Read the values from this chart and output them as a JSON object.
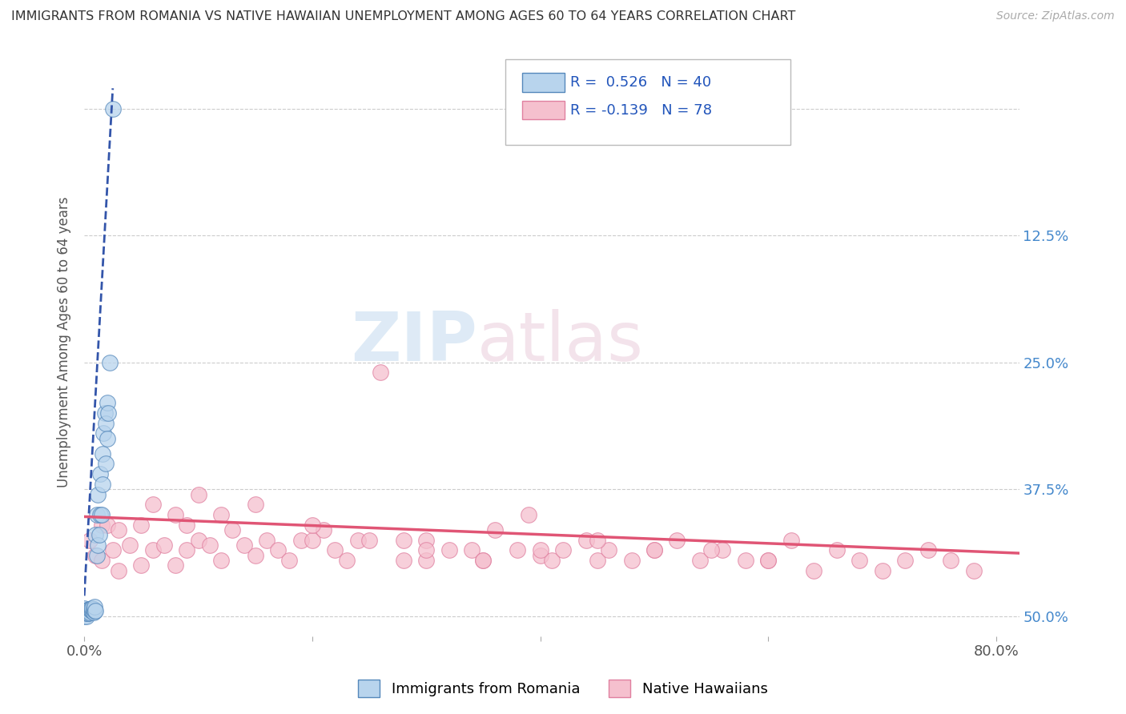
{
  "title": "IMMIGRANTS FROM ROMANIA VS NATIVE HAWAIIAN UNEMPLOYMENT AMONG AGES 60 TO 64 YEARS CORRELATION CHART",
  "source": "Source: ZipAtlas.com",
  "ylabel": "Unemployment Among Ages 60 to 64 years",
  "xlim": [
    0.0,
    0.82
  ],
  "ylim": [
    -0.02,
    0.56
  ],
  "yticks": [
    0.0,
    0.125,
    0.25,
    0.375,
    0.5
  ],
  "ytick_labels_right": [
    "50.0%",
    "37.5%",
    "25.0%",
    "12.5%",
    ""
  ],
  "xtick_labels": [
    "0.0%",
    "",
    "",
    "",
    "80.0%"
  ],
  "blue_R": 0.526,
  "blue_N": 40,
  "pink_R": -0.139,
  "pink_N": 78,
  "blue_color": "#b8d4ed",
  "blue_edge": "#5588bb",
  "pink_color": "#f5c0ce",
  "pink_edge": "#e080a0",
  "blue_line_color": "#3355aa",
  "pink_line_color": "#e05575",
  "legend_label_blue": "Immigrants from Romania",
  "legend_label_pink": "Native Hawaiians",
  "watermark_zip": "ZIP",
  "watermark_atlas": "atlas",
  "blue_points_x": [
    0.0,
    0.0,
    0.0,
    0.002,
    0.002,
    0.003,
    0.003,
    0.004,
    0.004,
    0.005,
    0.005,
    0.006,
    0.006,
    0.007,
    0.007,
    0.008,
    0.008,
    0.009,
    0.009,
    0.01,
    0.01,
    0.011,
    0.011,
    0.012,
    0.012,
    0.013,
    0.014,
    0.014,
    0.015,
    0.016,
    0.016,
    0.017,
    0.018,
    0.019,
    0.019,
    0.02,
    0.02,
    0.021,
    0.022,
    0.025
  ],
  "blue_points_y": [
    0.0,
    0.005,
    0.008,
    0.0,
    0.003,
    0.003,
    0.006,
    0.003,
    0.007,
    0.004,
    0.007,
    0.005,
    0.008,
    0.005,
    0.008,
    0.004,
    0.007,
    0.005,
    0.009,
    0.005,
    0.08,
    0.06,
    0.1,
    0.07,
    0.12,
    0.08,
    0.14,
    0.1,
    0.1,
    0.13,
    0.16,
    0.18,
    0.2,
    0.15,
    0.19,
    0.175,
    0.21,
    0.2,
    0.25,
    0.5
  ],
  "pink_points_x": [
    0.005,
    0.01,
    0.015,
    0.015,
    0.02,
    0.025,
    0.03,
    0.03,
    0.04,
    0.05,
    0.05,
    0.06,
    0.06,
    0.07,
    0.08,
    0.08,
    0.09,
    0.09,
    0.1,
    0.1,
    0.11,
    0.12,
    0.12,
    0.13,
    0.14,
    0.15,
    0.15,
    0.16,
    0.17,
    0.18,
    0.19,
    0.2,
    0.21,
    0.22,
    0.23,
    0.24,
    0.25,
    0.26,
    0.28,
    0.28,
    0.3,
    0.3,
    0.32,
    0.34,
    0.35,
    0.36,
    0.38,
    0.39,
    0.4,
    0.41,
    0.42,
    0.44,
    0.45,
    0.46,
    0.48,
    0.5,
    0.52,
    0.54,
    0.56,
    0.58,
    0.6,
    0.62,
    0.64,
    0.66,
    0.68,
    0.7,
    0.72,
    0.74,
    0.76,
    0.78,
    0.5,
    0.55,
    0.6,
    0.35,
    0.4,
    0.45,
    0.2,
    0.3
  ],
  "pink_points_y": [
    0.075,
    0.06,
    0.09,
    0.055,
    0.09,
    0.065,
    0.045,
    0.085,
    0.07,
    0.05,
    0.09,
    0.065,
    0.11,
    0.07,
    0.05,
    0.1,
    0.065,
    0.09,
    0.075,
    0.12,
    0.07,
    0.055,
    0.1,
    0.085,
    0.07,
    0.06,
    0.11,
    0.075,
    0.065,
    0.055,
    0.075,
    0.075,
    0.085,
    0.065,
    0.055,
    0.075,
    0.075,
    0.24,
    0.075,
    0.055,
    0.075,
    0.055,
    0.065,
    0.065,
    0.055,
    0.085,
    0.065,
    0.1,
    0.06,
    0.055,
    0.065,
    0.075,
    0.055,
    0.065,
    0.055,
    0.065,
    0.075,
    0.055,
    0.065,
    0.055,
    0.055,
    0.075,
    0.045,
    0.065,
    0.055,
    0.045,
    0.055,
    0.065,
    0.055,
    0.045,
    0.065,
    0.065,
    0.055,
    0.055,
    0.065,
    0.075,
    0.09,
    0.065
  ],
  "blue_trendline_x": [
    0.0,
    0.025
  ],
  "blue_trendline_y_start": 0.02,
  "blue_trendline_y_end": 0.52,
  "pink_trendline_x": [
    0.0,
    0.82
  ],
  "pink_trendline_y_start": 0.098,
  "pink_trendline_y_end": 0.062
}
